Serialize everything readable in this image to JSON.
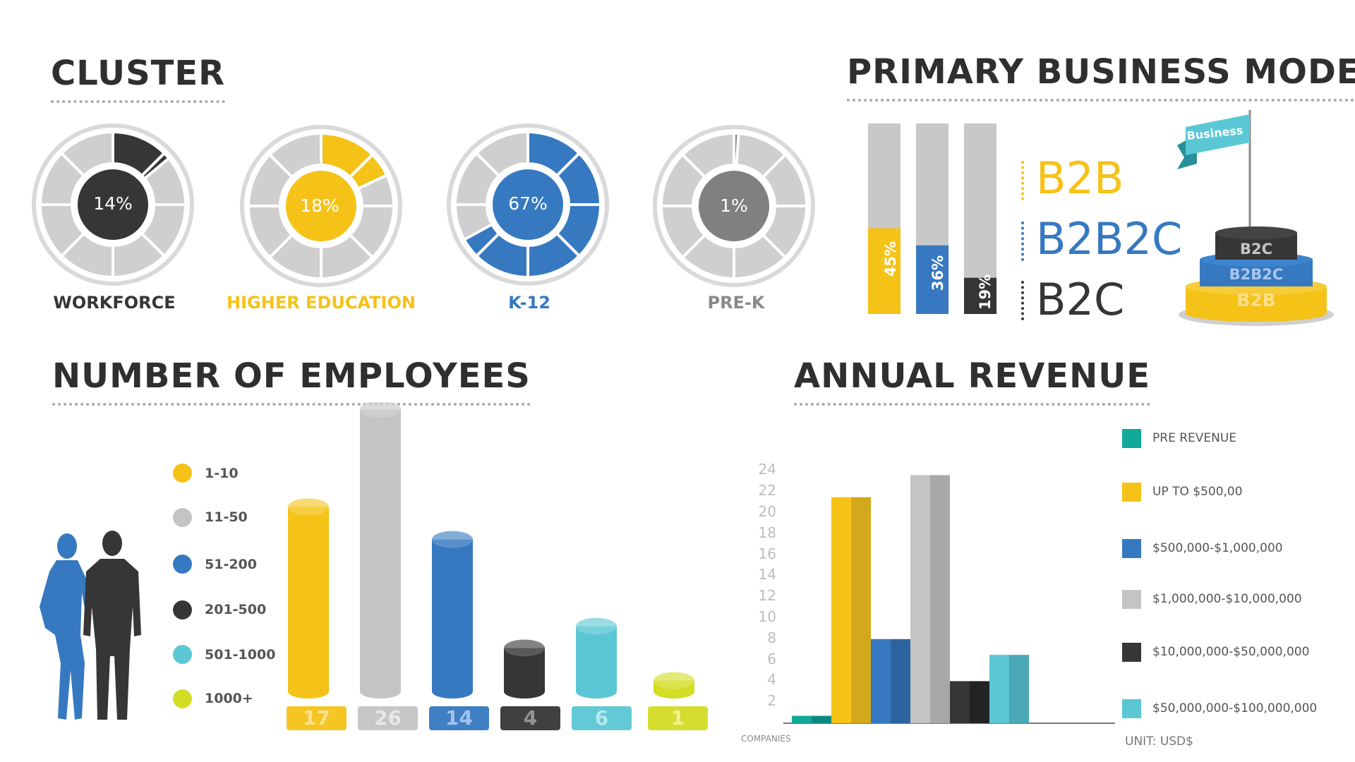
{
  "cluster": {
    "title": "CLUSTER",
    "items": [
      {
        "label": "WORKFORCE",
        "percent_text": "14%",
        "percent": 14,
        "color": "#363636",
        "label_color": "#363636"
      },
      {
        "label": "HIGHER EDUCATION",
        "percent_text": "18%",
        "percent": 18,
        "color": "#f5c218",
        "label_color": "#f5c218"
      },
      {
        "label": "K-12",
        "percent_text": "67%",
        "percent": 67,
        "color": "#3679c1",
        "label_color": "#3679c1"
      },
      {
        "label": "PRE-K",
        "percent_text": "1%",
        "percent": 1,
        "color": "#808080",
        "label_color": "#8a8a8a"
      }
    ]
  },
  "business_model": {
    "title": "PRIMARY BUSINESS MODEL",
    "bars": [
      {
        "label": "B2B",
        "percent_text": "45%",
        "percent": 45,
        "color": "#f5c218"
      },
      {
        "label": "B2B2C",
        "percent_text": "36%",
        "percent": 36,
        "color": "#3679c1"
      },
      {
        "label": "B2C",
        "percent_text": "19%",
        "percent": 19,
        "color": "#363636"
      }
    ],
    "flag_text": "Business",
    "tiers": [
      "B2C",
      "B2B2C",
      "B2B"
    ]
  },
  "employees": {
    "title": "NUMBER OF EMPLOYEES",
    "legend": [
      {
        "label": "1-10",
        "color": "#f5c218"
      },
      {
        "label": "11-50",
        "color": "#c4c4c4"
      },
      {
        "label": "51-200",
        "color": "#3679c1"
      },
      {
        "label": "201-500",
        "color": "#363636"
      },
      {
        "label": "501-1000",
        "color": "#5bc7d4"
      },
      {
        "label": "1000+",
        "color": "#d3dd24"
      }
    ],
    "values": [
      17,
      26,
      14,
      4,
      6,
      1
    ],
    "value_labels": [
      "17",
      "26",
      "14",
      "4",
      "6",
      "1"
    ]
  },
  "chart_data": {
    "type": "bar",
    "title": "ANNUAL REVENUE",
    "xlabel": "COMPANIES",
    "unit_note": "UNIT: USD$",
    "yticks": [
      "2",
      "4",
      "6",
      "8",
      "10",
      "12",
      "14",
      "16",
      "18",
      "20",
      "22",
      "24"
    ],
    "ylim": [
      0,
      24
    ],
    "categories": [
      "PRE REVENUE",
      "UP TO $500,00",
      "$500,000-$1,000,000",
      "$1,000,000-$10,000,000",
      "$10,000,000-$50,000,000",
      "$50,000,000-$100,000,000"
    ],
    "values": [
      0.7,
      21.5,
      8,
      23.6,
      4,
      6.5
    ],
    "colors": [
      "#12a89a",
      "#f5c218",
      "#3679c1",
      "#c4c4c4",
      "#363636",
      "#5bc7d4"
    ],
    "dark_colors": [
      "#0c8a7e",
      "#d4a81b",
      "#2d64a0",
      "#a8a8a8",
      "#232323",
      "#4aa9b5"
    ],
    "legend_placement": "right"
  }
}
